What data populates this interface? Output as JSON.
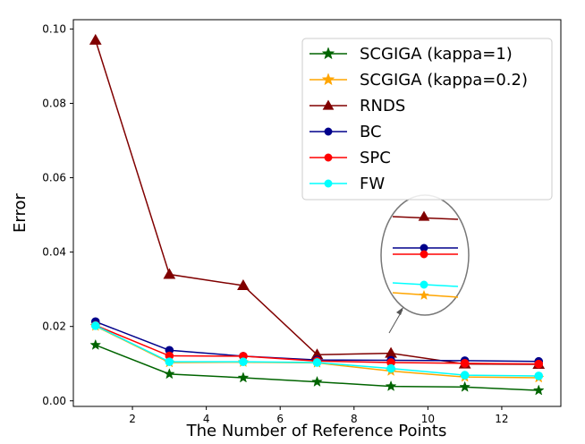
{
  "chart_data": {
    "type": "line",
    "title": "",
    "xlabel": "The Number of Reference Points",
    "ylabel": "Error",
    "xlim": [
      0.4,
      13.6
    ],
    "ylim": [
      -0.0015,
      0.1025
    ],
    "xticks": [
      2,
      4,
      6,
      8,
      10,
      12
    ],
    "xtick_labels": [
      "2",
      "4",
      "6",
      "8",
      "10",
      "12"
    ],
    "yticks": [
      0.0,
      0.02,
      0.04,
      0.06,
      0.08,
      0.1
    ],
    "ytick_labels": [
      "0.00",
      "0.02",
      "0.04",
      "0.06",
      "0.08",
      "0.10"
    ],
    "legend_position": "top-right",
    "x": [
      1,
      3,
      5,
      7,
      9,
      11,
      13
    ],
    "series": [
      {
        "name": "SCGIGA (kappa=1)",
        "color": "#006400",
        "marker": "star",
        "values": [
          0.015,
          0.0072,
          0.0062,
          0.0051,
          0.0039,
          0.0037,
          0.0028
        ]
      },
      {
        "name": "SCGIGA (kappa=0.2)",
        "color": "#FFA500",
        "marker": "star",
        "values": [
          0.0201,
          0.0103,
          0.0104,
          0.0102,
          0.008,
          0.0064,
          0.0062
        ]
      },
      {
        "name": "RNDS",
        "color": "#800000",
        "marker": "triangle",
        "values": [
          0.097,
          0.034,
          0.031,
          0.0124,
          0.0128,
          0.0099,
          0.0098
        ]
      },
      {
        "name": "BC",
        "color": "#00008B",
        "marker": "circle",
        "values": [
          0.0213,
          0.0136,
          0.012,
          0.011,
          0.0109,
          0.0108,
          0.0106
        ]
      },
      {
        "name": "SPC",
        "color": "#FF0000",
        "marker": "circle",
        "values": [
          0.0203,
          0.0121,
          0.012,
          0.0107,
          0.0103,
          0.0101,
          0.0099
        ]
      },
      {
        "name": "FW",
        "color": "#00FFFF",
        "marker": "circle",
        "values": [
          0.0202,
          0.0105,
          0.0105,
          0.0103,
          0.0087,
          0.0069,
          0.0067
        ]
      }
    ],
    "annotation": "zoomed inset of the last values near x=9-11"
  }
}
